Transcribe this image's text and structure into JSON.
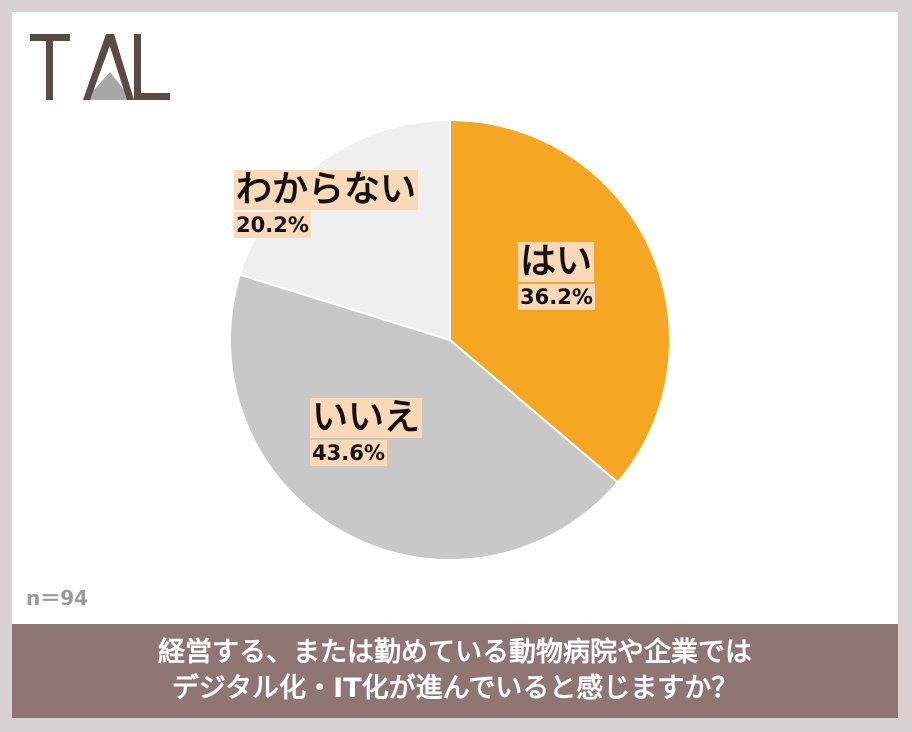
{
  "logo": {
    "text": "TAL",
    "colors": {
      "primary": "#5c4a47",
      "accent": "#9e9e9e"
    }
  },
  "sample_size": "n＝94",
  "question": {
    "line1": "経営する、または勤めている動物病院や企業では",
    "line2": "デジタル化・IT化が進んでいると感じますか？"
  },
  "chart_data": {
    "type": "pie",
    "title": "",
    "slices": [
      {
        "label": "はい",
        "value": 36.2,
        "value_label": "36.2%",
        "color": "#f5a623"
      },
      {
        "label": "いいえ",
        "value": 43.6,
        "value_label": "43.6%",
        "color": "#c8c8c8"
      },
      {
        "label": "わからない",
        "value": 20.2,
        "value_label": "20.2%",
        "color": "#efefef"
      }
    ],
    "start": "12 o'clock",
    "direction": "clockwise",
    "label_background": "#fbd9b8"
  }
}
